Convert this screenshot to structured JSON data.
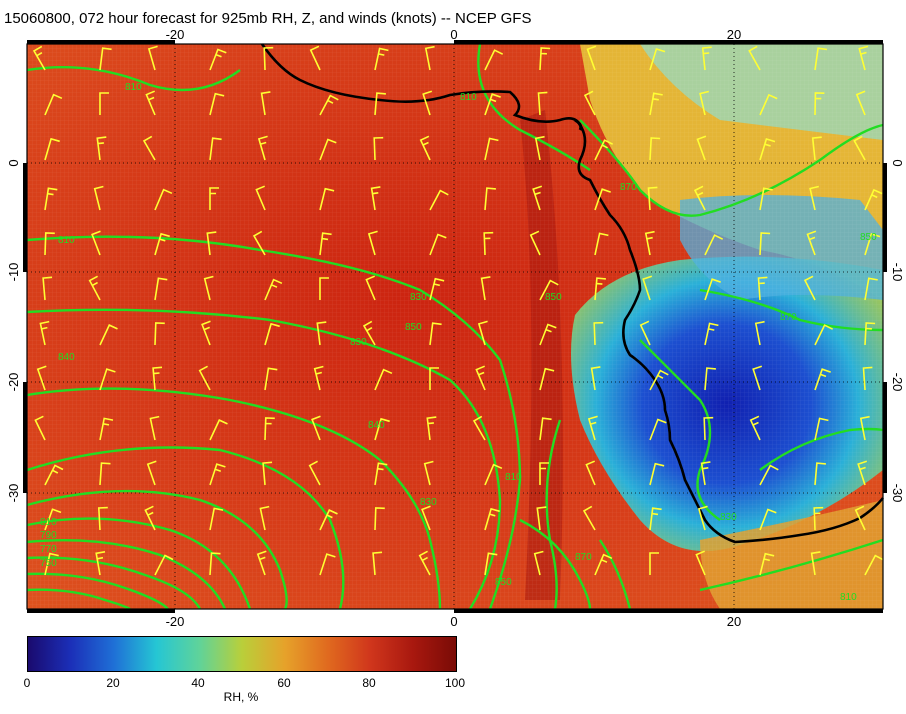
{
  "title": "15060800, 072 hour forecast for 925mb RH, Z, and winds (knots) -- NCEP GFS",
  "map": {
    "x_ticks_top": [
      "-20",
      "0",
      "20"
    ],
    "x_ticks_bottom": [
      "-20",
      "0",
      "20"
    ],
    "y_ticks_left": [
      "0",
      "-10",
      "-20",
      "-30"
    ],
    "y_ticks_right": [
      "0",
      "-10",
      "-20",
      "-30"
    ],
    "contour_labels": [
      "810",
      "810",
      "840",
      "830",
      "850",
      "850",
      "840",
      "830",
      "810",
      "790",
      "770",
      "750",
      "810",
      "830",
      "850",
      "870",
      "810",
      "830",
      "870",
      "850",
      "870",
      "810"
    ],
    "colors": {
      "coast": "#000000",
      "contour": "#22dd22",
      "barb": "#ffff33"
    }
  },
  "colorbar": {
    "title": "RH, %",
    "ticks": [
      "0",
      "20",
      "40",
      "60",
      "80",
      "100"
    ],
    "range": [
      0,
      100
    ]
  }
}
